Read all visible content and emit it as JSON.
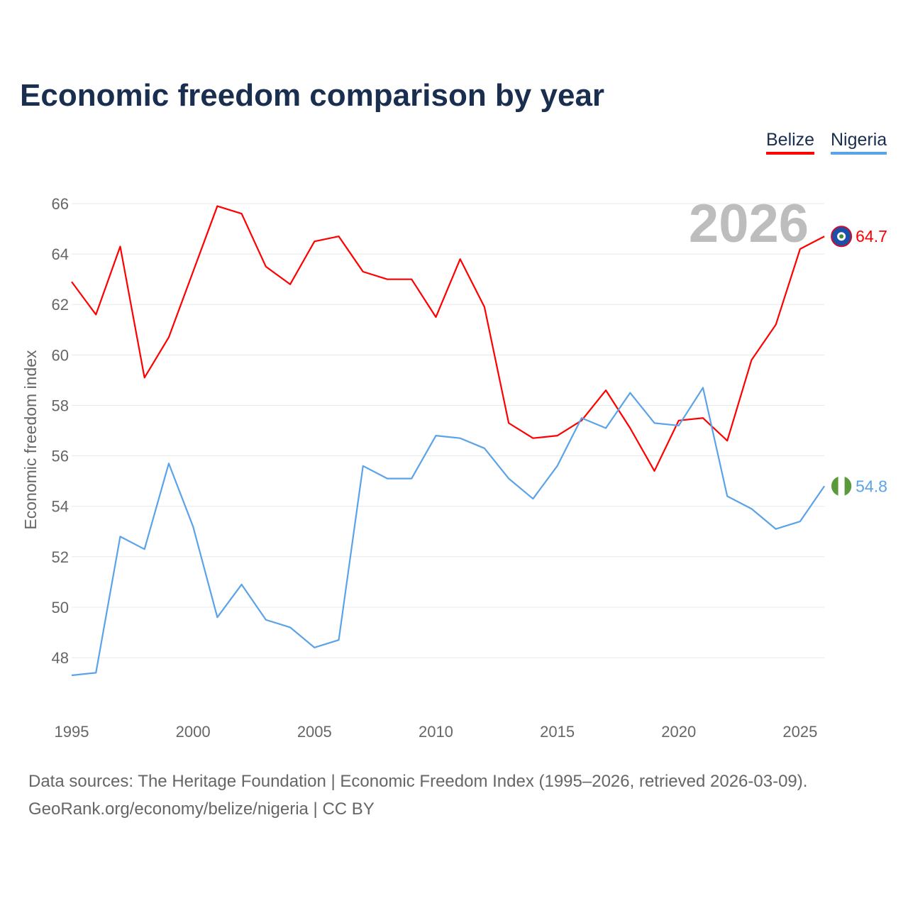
{
  "chart_data": {
    "type": "line",
    "title": "Economic freedom comparison by year",
    "xlabel": "",
    "ylabel": "Economic freedom index",
    "ylim": [
      46,
      66
    ],
    "yticks": [
      48,
      50,
      52,
      54,
      56,
      58,
      60,
      62,
      64,
      66
    ],
    "xticks": [
      1995,
      2000,
      2005,
      2010,
      2015,
      2020,
      2025
    ],
    "year_label": "2026",
    "x": [
      1995,
      1996,
      1997,
      1998,
      1999,
      2000,
      2001,
      2002,
      2003,
      2004,
      2005,
      2006,
      2007,
      2008,
      2009,
      2010,
      2011,
      2012,
      2013,
      2014,
      2015,
      2016,
      2017,
      2018,
      2019,
      2020,
      2021,
      2022,
      2023,
      2024,
      2025,
      2026
    ],
    "series": [
      {
        "name": "Belize",
        "color": "#ff0000",
        "end_label": "64.7",
        "values": [
          62.9,
          61.6,
          64.3,
          59.1,
          60.7,
          63.3,
          65.9,
          65.6,
          63.5,
          62.8,
          64.5,
          64.7,
          63.3,
          63.0,
          63.0,
          61.5,
          63.8,
          61.9,
          57.3,
          56.7,
          56.8,
          57.4,
          58.6,
          57.1,
          55.4,
          57.4,
          57.5,
          56.6,
          59.8,
          61.2,
          64.2,
          64.7
        ]
      },
      {
        "name": "Nigeria",
        "color": "#5ba3e8",
        "end_label": "54.8",
        "values": [
          47.3,
          47.4,
          52.8,
          52.3,
          55.7,
          53.2,
          49.6,
          50.9,
          49.5,
          49.2,
          48.4,
          48.7,
          55.6,
          55.1,
          55.1,
          56.8,
          56.7,
          56.3,
          55.1,
          54.3,
          55.6,
          57.5,
          57.1,
          58.5,
          57.3,
          57.2,
          58.7,
          54.4,
          53.9,
          53.1,
          53.4,
          54.8
        ]
      }
    ],
    "legend_position": "top-right"
  },
  "footer": {
    "line1": "Data sources: The Heritage Foundation | Economic Freedom Index (1995–2026, retrieved 2026-03-09).",
    "line2": "GeoRank.org/economy/belize/nigeria | CC BY"
  }
}
